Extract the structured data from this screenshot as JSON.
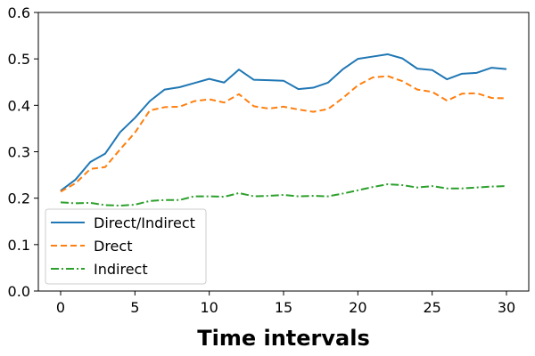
{
  "chart_data": {
    "type": "line",
    "title": "",
    "xlabel": "Time intervals",
    "ylabel": "",
    "xlim": [
      -1.5,
      31.5
    ],
    "ylim": [
      0.0,
      0.6
    ],
    "xticks": [
      0,
      5,
      10,
      15,
      20,
      25,
      30
    ],
    "yticks": [
      0.0,
      0.1,
      0.2,
      0.3,
      0.4,
      0.5,
      0.6
    ],
    "grid": false,
    "legend_position": "lower-left",
    "x": [
      0,
      1,
      2,
      3,
      4,
      5,
      6,
      7,
      8,
      9,
      10,
      11,
      12,
      13,
      14,
      15,
      16,
      17,
      18,
      19,
      20,
      21,
      22,
      23,
      24,
      25,
      26,
      27,
      28,
      29,
      30
    ],
    "series": [
      {
        "name": "Direct/Indirect",
        "color": "#1f77b4",
        "dash": "solid",
        "values": [
          0.216,
          0.24,
          0.278,
          0.296,
          0.342,
          0.373,
          0.409,
          0.434,
          0.439,
          0.448,
          0.457,
          0.449,
          0.477,
          0.455,
          0.454,
          0.453,
          0.435,
          0.438,
          0.449,
          0.478,
          0.5,
          0.505,
          0.51,
          0.501,
          0.479,
          0.476,
          0.456,
          0.468,
          0.47,
          0.481,
          0.478
        ]
      },
      {
        "name": "Drect",
        "color": "#ff7f0e",
        "dash": "dashed",
        "values": [
          0.214,
          0.232,
          0.263,
          0.267,
          0.305,
          0.341,
          0.389,
          0.396,
          0.397,
          0.409,
          0.413,
          0.406,
          0.424,
          0.398,
          0.393,
          0.397,
          0.391,
          0.386,
          0.392,
          0.416,
          0.443,
          0.46,
          0.463,
          0.452,
          0.434,
          0.429,
          0.41,
          0.425,
          0.426,
          0.416,
          0.415
        ]
      },
      {
        "name": "Indirect",
        "color": "#2ca02c",
        "dash": "dashdot",
        "values": [
          0.191,
          0.189,
          0.19,
          0.185,
          0.184,
          0.186,
          0.194,
          0.196,
          0.196,
          0.204,
          0.204,
          0.203,
          0.211,
          0.204,
          0.205,
          0.207,
          0.204,
          0.205,
          0.204,
          0.21,
          0.217,
          0.224,
          0.23,
          0.228,
          0.223,
          0.226,
          0.221,
          0.221,
          0.223,
          0.225,
          0.226
        ]
      }
    ]
  }
}
